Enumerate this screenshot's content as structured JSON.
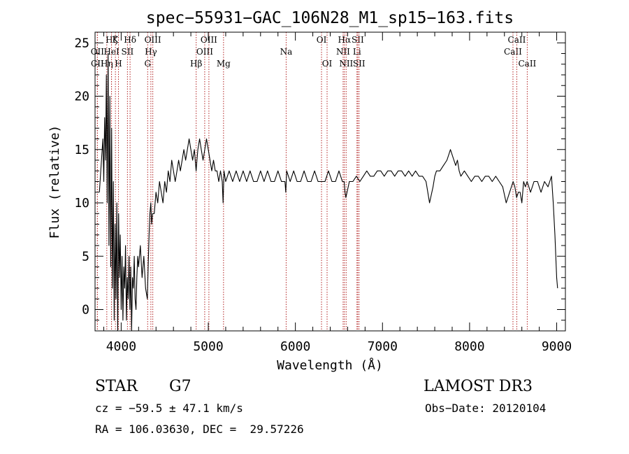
{
  "chart_data": {
    "type": "line",
    "title": "spec−55931−GAC_106N28_M1_sp15−163.fits",
    "xlabel": "Wavelength (Å)",
    "ylabel": "Flux (relative)",
    "xlim": [
      3700,
      9100
    ],
    "ylim": [
      -2,
      26
    ],
    "xticks": [
      4000,
      5000,
      6000,
      7000,
      8000,
      9000
    ],
    "yticks": [
      0,
      5,
      10,
      15,
      20,
      25
    ],
    "series": [
      {
        "name": "flux",
        "x": [
          3750,
          3790,
          3800,
          3810,
          3820,
          3830,
          3840,
          3850,
          3860,
          3870,
          3880,
          3890,
          3900,
          3910,
          3920,
          3930,
          3940,
          3950,
          3960,
          3970,
          3980,
          3990,
          4000,
          4010,
          4020,
          4030,
          4040,
          4050,
          4060,
          4070,
          4080,
          4090,
          4100,
          4110,
          4120,
          4130,
          4140,
          4150,
          4160,
          4170,
          4180,
          4190,
          4200,
          4220,
          4240,
          4260,
          4280,
          4300,
          4310,
          4320,
          4330,
          4340,
          4350,
          4360,
          4380,
          4400,
          4420,
          4440,
          4460,
          4480,
          4500,
          4520,
          4540,
          4560,
          4580,
          4600,
          4620,
          4640,
          4660,
          4680,
          4700,
          4720,
          4740,
          4760,
          4780,
          4800,
          4820,
          4840,
          4860,
          4870,
          4880,
          4900,
          4920,
          4940,
          4960,
          4980,
          5000,
          5020,
          5040,
          5060,
          5080,
          5100,
          5120,
          5140,
          5160,
          5170,
          5180,
          5200,
          5240,
          5280,
          5320,
          5360,
          5400,
          5440,
          5480,
          5520,
          5560,
          5600,
          5640,
          5680,
          5720,
          5760,
          5800,
          5840,
          5880,
          5890,
          5900,
          5940,
          5980,
          6020,
          6060,
          6100,
          6140,
          6180,
          6220,
          6260,
          6300,
          6340,
          6380,
          6420,
          6460,
          6500,
          6540,
          6560,
          6570,
          6580,
          6620,
          6660,
          6700,
          6740,
          6780,
          6820,
          6860,
          6900,
          6940,
          6980,
          7020,
          7060,
          7100,
          7140,
          7180,
          7220,
          7260,
          7300,
          7340,
          7380,
          7420,
          7460,
          7500,
          7540,
          7580,
          7600,
          7620,
          7640,
          7660,
          7700,
          7740,
          7780,
          7820,
          7840,
          7860,
          7880,
          7900,
          7940,
          7980,
          8020,
          8060,
          8100,
          8140,
          8180,
          8220,
          8260,
          8300,
          8340,
          8380,
          8420,
          8460,
          8500,
          8520,
          8540,
          8560,
          8580,
          8600,
          8620,
          8640,
          8660,
          8680,
          8700,
          8740,
          8780,
          8820,
          8860,
          8900,
          8940,
          8960,
          8980,
          9000,
          9010
        ],
        "y": [
          11,
          16,
          12,
          18,
          14,
          22,
          10,
          24,
          6,
          20,
          4,
          17,
          2,
          12,
          -1,
          8,
          1,
          10,
          -2,
          9,
          3,
          7,
          0,
          5,
          -1,
          4,
          2,
          6,
          -1,
          3,
          1,
          5,
          0,
          4,
          -2,
          3,
          2,
          5,
          1,
          0,
          3,
          5,
          4,
          6,
          3,
          5,
          2,
          1,
          4,
          7,
          9,
          10,
          8,
          9,
          9,
          11,
          10,
          12,
          11,
          10,
          12,
          11,
          13,
          12,
          14,
          13,
          12,
          13,
          14,
          13,
          14,
          15,
          14,
          15,
          16,
          15,
          14,
          15,
          13,
          14,
          15,
          16,
          15,
          14,
          15,
          16,
          15,
          14,
          13,
          14,
          13,
          13,
          12,
          13,
          12,
          10,
          13,
          12,
          13,
          12,
          13,
          12,
          13,
          12,
          13,
          12,
          12,
          13,
          12,
          13,
          12,
          12,
          13,
          12,
          12,
          11,
          13,
          12,
          13,
          12,
          12,
          13,
          12,
          12,
          13,
          12,
          12,
          12,
          13,
          12,
          12,
          13,
          12,
          12,
          11,
          10.5,
          12,
          12,
          12.5,
          12,
          12.5,
          13,
          12.5,
          12.5,
          13,
          13,
          12.5,
          13,
          13,
          12.5,
          13,
          13,
          12.5,
          13,
          12.5,
          13,
          12.5,
          12.5,
          12,
          10,
          11.5,
          12.5,
          13,
          13,
          13,
          13.5,
          14,
          15,
          14,
          13.5,
          14,
          13,
          12.5,
          13,
          12.5,
          12,
          12.5,
          12.5,
          12,
          12.5,
          12.5,
          12,
          12.5,
          12,
          11.5,
          10,
          11,
          12,
          11.5,
          10.5,
          11,
          11,
          10,
          12,
          11.5,
          12,
          11.5,
          11,
          12,
          12,
          11,
          12,
          11.5,
          12.5,
          10,
          7,
          3,
          2
        ]
      }
    ],
    "lines": [
      {
        "name": "CII",
        "x": 3727,
        "row": 2
      },
      {
        "name": "OII",
        "x": 3727,
        "row": 1
      },
      {
        "name": "Hη",
        "x": 3835,
        "row": 2
      },
      {
        "name": "Hζ",
        "x": 3889,
        "row": 0
      },
      {
        "name": "HeI",
        "x": 3889,
        "row": 1
      },
      {
        "name": "K",
        "x": 3934,
        "row": 0
      },
      {
        "name": "H",
        "x": 3969,
        "row": 2
      },
      {
        "name": "SII",
        "x": 4072,
        "row": 1
      },
      {
        "name": "Hδ",
        "x": 4102,
        "row": 0
      },
      {
        "name": "G",
        "x": 4304,
        "row": 2
      },
      {
        "name": "Hγ",
        "x": 4341,
        "row": 1
      },
      {
        "name": "OIII",
        "x": 4363,
        "row": 0
      },
      {
        "name": "Hβ",
        "x": 4861,
        "row": 2
      },
      {
        "name": "OIII",
        "x": 4959,
        "row": 1
      },
      {
        "name": "OIII",
        "x": 5007,
        "row": 0
      },
      {
        "name": "Mg",
        "x": 5175,
        "row": 2
      },
      {
        "name": "Na",
        "x": 5894,
        "row": 1
      },
      {
        "name": "OI",
        "x": 6300,
        "row": 0
      },
      {
        "name": "OI",
        "x": 6364,
        "row": 2
      },
      {
        "name": "NII",
        "x": 6548,
        "row": 1
      },
      {
        "name": "Hα",
        "x": 6563,
        "row": 0
      },
      {
        "name": "NII",
        "x": 6583,
        "row": 2
      },
      {
        "name": "Li",
        "x": 6707,
        "row": 1
      },
      {
        "name": "SII",
        "x": 6716,
        "row": 0
      },
      {
        "name": "SII",
        "x": 6731,
        "row": 2
      },
      {
        "name": "CaII",
        "x": 8498,
        "row": 1
      },
      {
        "name": "CaII",
        "x": 8542,
        "row": 0
      },
      {
        "name": "CaII",
        "x": 8662,
        "row": 2
      }
    ]
  },
  "info": {
    "object_class": "STAR",
    "subclass": "G7",
    "survey": "LAMOST DR3",
    "cz": "cz = −59.5 ± 47.1 km/s",
    "obs_date": "Obs−Date: 20120104",
    "coords": "RA = 106.03630, DEC =  29.57226"
  }
}
